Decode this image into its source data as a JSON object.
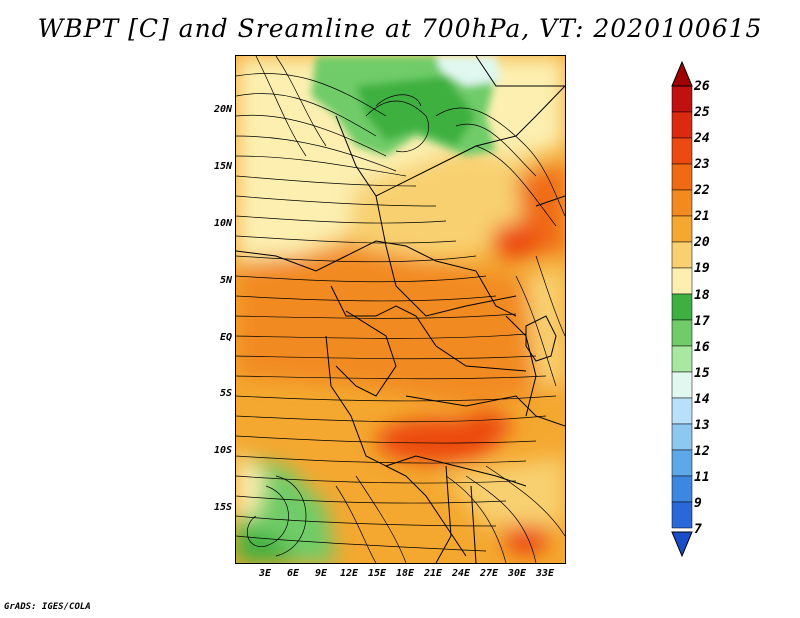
{
  "title": "WBPT [C] and Sreamline at 700hPa, VT: 2020100615",
  "footer": "GrADS: IGES/COLA",
  "map": {
    "lat_labels": [
      "20N",
      "15N",
      "10N",
      "5N",
      "EQ",
      "5S",
      "10S",
      "15S"
    ],
    "lon_labels": [
      "3E",
      "6E",
      "9E",
      "12E",
      "15E",
      "18E",
      "21E",
      "24E",
      "27E",
      "30E",
      "33E"
    ]
  },
  "colorbar": {
    "labels": [
      "26",
      "25",
      "24",
      "23",
      "22",
      "21",
      "20",
      "19",
      "18",
      "17",
      "16",
      "15",
      "14",
      "13",
      "12",
      "11",
      "9",
      "7"
    ],
    "colors": [
      "#a00000",
      "#c01010",
      "#dc2a10",
      "#ec4a10",
      "#f06a14",
      "#f28a20",
      "#f4a830",
      "#f8d070",
      "#fcefb0",
      "#3cb040",
      "#70cc68",
      "#a8e8a0",
      "#e0f8f0",
      "#b8e0f8",
      "#8cc8f0",
      "#5ca8e8",
      "#3c88e0",
      "#2868d8",
      "#1a4ec8"
    ]
  }
}
